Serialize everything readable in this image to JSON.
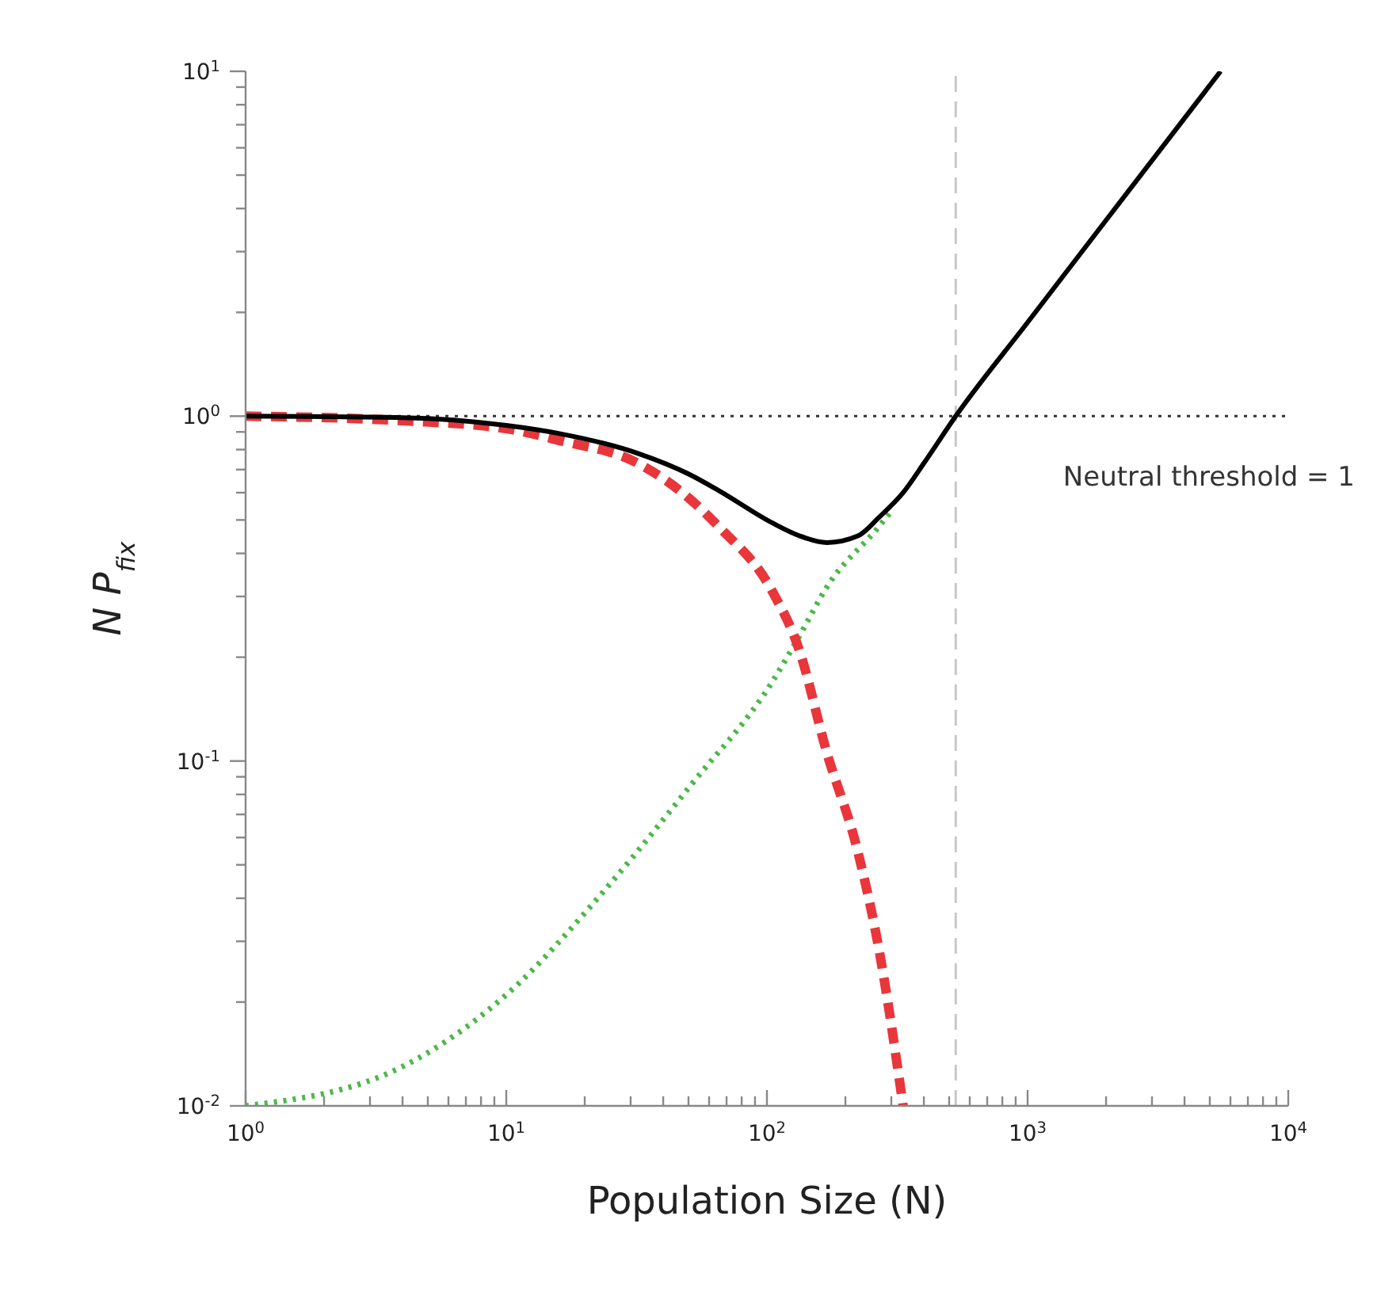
{
  "chart_data": {
    "type": "line",
    "xlabel": "Population Size (N)",
    "ylabel": "N P$_{fix}$",
    "log": "xy",
    "marker": "none",
    "xlim": [
      1,
      10000
    ],
    "ylim": [
      0.01,
      10
    ],
    "xticks": [
      {
        "value": 1,
        "label": "10$^{0}$"
      },
      {
        "value": 2,
        "label": null
      },
      {
        "value": 3,
        "label": null
      },
      {
        "value": 4,
        "label": null
      },
      {
        "value": 5,
        "label": null
      },
      {
        "value": 6,
        "label": null
      },
      {
        "value": 7,
        "label": null
      },
      {
        "value": 8,
        "label": null
      },
      {
        "value": 9,
        "label": null
      },
      {
        "value": 10,
        "label": "10$^{1}$"
      },
      {
        "value": 20,
        "label": null
      },
      {
        "value": 30,
        "label": null
      },
      {
        "value": 40,
        "label": null
      },
      {
        "value": 50,
        "label": null
      },
      {
        "value": 60,
        "label": null
      },
      {
        "value": 70,
        "label": null
      },
      {
        "value": 80,
        "label": null
      },
      {
        "value": 90,
        "label": null
      },
      {
        "value": 100,
        "label": "10$^{2}$"
      },
      {
        "value": 200,
        "label": null
      },
      {
        "value": 300,
        "label": null
      },
      {
        "value": 400,
        "label": null
      },
      {
        "value": 500,
        "label": null
      },
      {
        "value": 600,
        "label": null
      },
      {
        "value": 700,
        "label": null
      },
      {
        "value": 800,
        "label": null
      },
      {
        "value": 900,
        "label": null
      },
      {
        "value": 1000,
        "label": "10$^{3}$"
      },
      {
        "value": 2000,
        "label": null
      },
      {
        "value": 3000,
        "label": null
      },
      {
        "value": 4000,
        "label": null
      },
      {
        "value": 5000,
        "label": null
      },
      {
        "value": 6000,
        "label": null
      },
      {
        "value": 7000,
        "label": null
      },
      {
        "value": 8000,
        "label": null
      },
      {
        "value": 9000,
        "label": null
      },
      {
        "value": 10000,
        "label": "10$^{4}$"
      }
    ],
    "yticks": [
      {
        "value": 0.01,
        "label": "10$^{-2}$"
      },
      {
        "value": 0.02,
        "label": null
      },
      {
        "value": 0.03,
        "label": null
      },
      {
        "value": 0.04,
        "label": null
      },
      {
        "value": 0.05,
        "label": null
      },
      {
        "value": 0.06,
        "label": null
      },
      {
        "value": 0.07,
        "label": null
      },
      {
        "value": 0.08,
        "label": null
      },
      {
        "value": 0.09,
        "label": null
      },
      {
        "value": 0.1,
        "label": "10$^{-1}$"
      },
      {
        "value": 0.2,
        "label": null
      },
      {
        "value": 0.3,
        "label": null
      },
      {
        "value": 0.4,
        "label": null
      },
      {
        "value": 0.5,
        "label": null
      },
      {
        "value": 0.6,
        "label": null
      },
      {
        "value": 0.7,
        "label": null
      },
      {
        "value": 0.8,
        "label": null
      },
      {
        "value": 0.9,
        "label": null
      },
      {
        "value": 1,
        "label": "10$^{0}$"
      },
      {
        "value": 2,
        "label": null
      },
      {
        "value": 3,
        "label": null
      },
      {
        "value": 4,
        "label": null
      },
      {
        "value": 5,
        "label": null
      },
      {
        "value": 6,
        "label": null
      },
      {
        "value": 7,
        "label": null
      },
      {
        "value": 8,
        "label": null
      },
      {
        "value": 9,
        "label": null
      },
      {
        "value": 10,
        "label": "10$^{1}$"
      }
    ],
    "ref_lines": [
      {
        "axis": "y",
        "value": 1,
        "label": "Neutral threshold = 1",
        "color": "#333333",
        "line_style": "dotted"
      },
      {
        "axis": "x",
        "value": 530,
        "color": "#c8c8c8",
        "line_style": "dashed"
      }
    ],
    "series": [
      {
        "color": "#4cb848",
        "line_style": "dotted",
        "x": [
          1,
          4,
          10,
          25,
          51,
          105,
          133,
          170,
          270,
          300
        ],
        "values": [
          0.01,
          0.013,
          0.021,
          0.044,
          0.085,
          0.17,
          0.23,
          0.32,
          0.48,
          0.53
        ]
      },
      {
        "color": "#e8363a",
        "line_style": "dashed",
        "x": [
          1,
          4,
          10,
          16,
          32,
          50,
          65,
          105,
          133,
          169,
          224,
          270,
          333
        ],
        "values": [
          1,
          0.97,
          0.92,
          0.85,
          0.73,
          0.58,
          0.48,
          0.31,
          0.21,
          0.107,
          0.054,
          0.028,
          0.01
        ]
      },
      {
        "color": "#000000",
        "line_style": "solid",
        "x": [
          1,
          4,
          10,
          16,
          32,
          50,
          65,
          105,
          133,
          170,
          224,
          270,
          333,
          400,
          530,
          1000,
          2000,
          5500
        ],
        "values": [
          1,
          0.99,
          0.94,
          0.89,
          0.78,
          0.68,
          0.61,
          0.49,
          0.45,
          0.43,
          0.45,
          0.51,
          0.6,
          0.73,
          1,
          1.87,
          3.7,
          10
        ]
      }
    ]
  }
}
